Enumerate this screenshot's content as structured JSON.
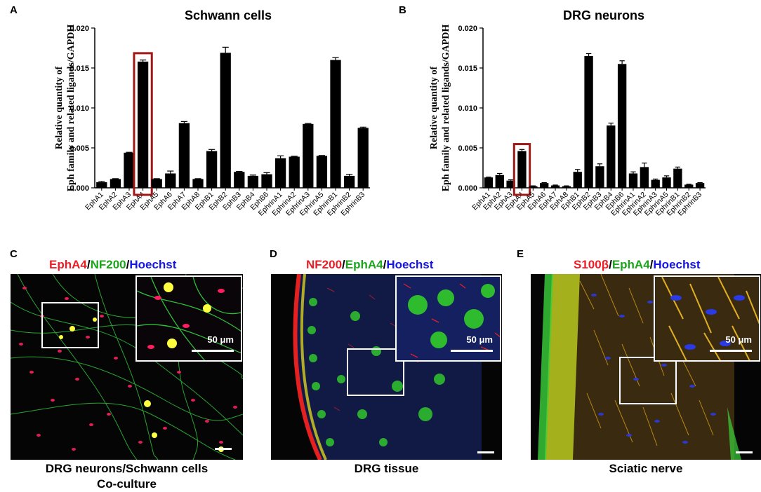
{
  "chart_data": [
    {
      "type": "bar",
      "panel": "A",
      "title": "Schwann cells",
      "ylabel_line1": "Relative quantity of",
      "ylabel_line2": "Eph family and related ligands/GAPDH",
      "ylim": [
        0,
        0.02
      ],
      "yticks": [
        "0.000",
        "0.005",
        "0.010",
        "0.015",
        "0.020"
      ],
      "categories": [
        "EphA1",
        "EphA2",
        "EphA3",
        "EphA4",
        "EphA5",
        "EphA6",
        "EphA7",
        "EphA8",
        "EphB1",
        "EphB2",
        "EphB3",
        "EphB4",
        "EphB6",
        "EphrinA1",
        "EphrinA2",
        "EphrinA3",
        "EphrinA5",
        "EphrinB1",
        "EphrinB2",
        "EphrinB3"
      ],
      "values": [
        0.0007,
        0.0011,
        0.0044,
        0.0158,
        0.0011,
        0.0018,
        0.0081,
        0.0011,
        0.0046,
        0.0169,
        0.002,
        0.0015,
        0.0017,
        0.0037,
        0.0039,
        0.008,
        0.004,
        0.016,
        0.0015,
        0.0075
      ],
      "errors": [
        0.0001,
        5e-05,
        5e-05,
        0.0002,
        5e-05,
        0.0003,
        0.0002,
        5e-05,
        0.0002,
        0.0007,
        5e-05,
        0.0001,
        0.0002,
        0.0003,
        5e-05,
        5e-05,
        5e-05,
        0.0003,
        0.0002,
        0.0001
      ],
      "highlight": "EphA4",
      "bar_color": "#000000",
      "highlight_color": "#a01818"
    },
    {
      "type": "bar",
      "panel": "B",
      "title": "DRG neurons",
      "ylabel_line1": "Relative quantity of",
      "ylabel_line2": "Eph family and related ligands/GAPDH",
      "ylim": [
        0,
        0.02
      ],
      "yticks": [
        "0.000",
        "0.005",
        "0.010",
        "0.015",
        "0.020"
      ],
      "categories": [
        "EphA1",
        "EphA2",
        "EphA3",
        "EphA4",
        "EphA5",
        "EphA6",
        "EphA7",
        "EphA8",
        "EphB1",
        "EphB2",
        "EphB3",
        "EphB4",
        "EphB6",
        "EphrinA1",
        "EphrinA2",
        "EphrinA3",
        "EphrinA5",
        "EphrinB1",
        "EphrinB2",
        "EphrinB3"
      ],
      "values": [
        0.0013,
        0.0016,
        0.0009,
        0.0046,
        0.0002,
        0.0006,
        0.0003,
        0.0002,
        0.002,
        0.0165,
        0.0027,
        0.0078,
        0.0155,
        0.0018,
        0.0026,
        0.001,
        0.0013,
        0.0024,
        0.0004,
        0.0006
      ],
      "errors": [
        5e-05,
        0.0002,
        0.0001,
        0.0002,
        5e-05,
        5e-05,
        5e-05,
        5e-05,
        0.0003,
        0.0003,
        0.0003,
        0.0003,
        0.0004,
        0.0002,
        0.0005,
        0.0001,
        0.0002,
        0.0002,
        5e-05,
        5e-05
      ],
      "highlight": "EphA4",
      "bar_color": "#000000",
      "highlight_color": "#a01818"
    }
  ],
  "panels": {
    "a_letter": "A",
    "b_letter": "B",
    "c": {
      "letter": "C",
      "stain": [
        "EphA4",
        "NF200",
        "Hoechst"
      ],
      "caption_line1": "DRG neurons/Schwann cells",
      "caption_line2": "Co-culture",
      "scale_label": "50 μm"
    },
    "d": {
      "letter": "D",
      "stain": [
        "NF200",
        "EphA4",
        "Hoechst"
      ],
      "caption_line1": "DRG tissue",
      "scale_label": "50 μm"
    },
    "e": {
      "letter": "E",
      "stain": [
        "S100β",
        "EphA4",
        "Hoechst"
      ],
      "caption_line1": "Sciatic nerve",
      "scale_label": "50 μm"
    },
    "separator": "/"
  },
  "colors": {
    "stain_red": "#ee1c24",
    "stain_green": "#1aa51a",
    "stain_blue": "#1515e6",
    "highlight_box": "#a01818"
  }
}
